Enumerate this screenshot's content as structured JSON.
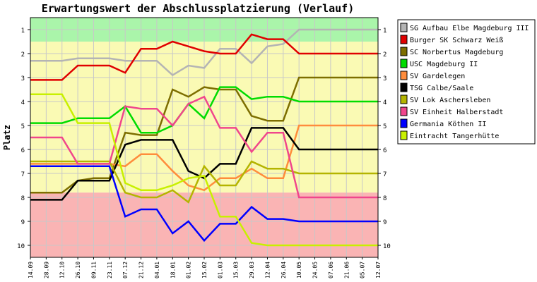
{
  "chart_data": {
    "type": "line",
    "title": "Erwartungswert der Abschlussplatzierung (Verlauf)",
    "xlabel": "",
    "ylabel": "Platz",
    "ylim": [
      0.5,
      10.5
    ],
    "y_inverted": true,
    "y_ticks": [
      "1",
      "2",
      "3",
      "4",
      "5",
      "6",
      "7",
      "8",
      "9",
      "10"
    ],
    "x": [
      "14.09",
      "28.09",
      "12.10",
      "26.10",
      "09.11",
      "23.11",
      "07.12",
      "21.12",
      "04.01",
      "18.01",
      "01.02",
      "15.02",
      "01.03",
      "15.03",
      "29.03",
      "12.04",
      "26.04",
      "10.05",
      "24.05",
      "07.06",
      "21.06",
      "05.07",
      "12.07"
    ],
    "grid": true,
    "legend_position": "right",
    "background_bands": [
      {
        "from": 0.5,
        "to": 1.5,
        "color": "#aaf5aa"
      },
      {
        "from": 1.5,
        "to": 7.8,
        "color": "#fafab4"
      },
      {
        "from": 7.8,
        "to": 10.5,
        "color": "#fab4b4"
      }
    ],
    "series": [
      {
        "name": "SG Aufbau Elbe Magdeburg III",
        "color": "#b4b4b4",
        "values": [
          2.3,
          2.3,
          2.3,
          2.2,
          2.2,
          2.2,
          2.3,
          2.3,
          2.3,
          2.9,
          2.5,
          2.6,
          1.8,
          1.8,
          2.4,
          1.7,
          1.6,
          1.0,
          1.0,
          1.0,
          1.0,
          1.0,
          1.0
        ]
      },
      {
        "name": "Burger SK Schwarz Weiß",
        "color": "#e00000",
        "values": [
          3.1,
          3.1,
          3.1,
          2.5,
          2.5,
          2.5,
          2.8,
          1.8,
          1.8,
          1.5,
          1.7,
          1.9,
          2.0,
          2.0,
          1.2,
          1.4,
          1.4,
          2.0,
          2.0,
          2.0,
          2.0,
          2.0,
          2.0
        ]
      },
      {
        "name": "SC Norbertus Magdeburg",
        "color": "#7d6e00",
        "values": [
          7.8,
          7.8,
          7.8,
          7.3,
          7.2,
          7.2,
          5.3,
          5.4,
          5.4,
          3.5,
          3.8,
          3.4,
          3.5,
          3.5,
          4.6,
          4.8,
          4.8,
          3.0,
          3.0,
          3.0,
          3.0,
          3.0,
          3.0
        ]
      },
      {
        "name": "USC Magdeburg II",
        "color": "#00dc00",
        "values": [
          4.9,
          4.9,
          4.9,
          4.7,
          4.7,
          4.7,
          4.2,
          5.3,
          5.3,
          5.0,
          4.1,
          4.7,
          3.4,
          3.4,
          3.9,
          3.8,
          3.8,
          4.0,
          4.0,
          4.0,
          4.0,
          4.0,
          4.0
        ]
      },
      {
        "name": "SV Gardelegen",
        "color": "#ff8c3c",
        "values": [
          6.6,
          6.6,
          6.6,
          6.6,
          6.6,
          6.6,
          6.7,
          6.2,
          6.2,
          6.9,
          7.5,
          7.7,
          7.2,
          7.2,
          6.8,
          7.2,
          7.2,
          5.0,
          5.0,
          5.0,
          5.0,
          5.0,
          5.0
        ]
      },
      {
        "name": "TSG Calbe/Saale",
        "color": "#000000",
        "values": [
          8.1,
          8.1,
          8.1,
          7.3,
          7.3,
          7.3,
          5.8,
          5.6,
          5.6,
          5.6,
          6.9,
          7.2,
          6.6,
          6.6,
          5.1,
          5.1,
          5.1,
          6.0,
          6.0,
          6.0,
          6.0,
          6.0,
          6.0
        ]
      },
      {
        "name": "SV Lok Aschersleben",
        "color": "#b4b400",
        "values": [
          6.5,
          6.5,
          6.5,
          6.5,
          6.5,
          6.5,
          7.8,
          8.0,
          8.0,
          7.7,
          8.2,
          6.7,
          7.5,
          7.5,
          6.5,
          6.8,
          6.8,
          7.0,
          7.0,
          7.0,
          7.0,
          7.0,
          7.0
        ]
      },
      {
        "name": "SV Einheit Halberstadt",
        "color": "#f0468c",
        "values": [
          5.5,
          5.5,
          5.5,
          6.6,
          6.6,
          6.6,
          4.2,
          4.3,
          4.3,
          5.0,
          4.1,
          3.8,
          5.1,
          5.1,
          6.1,
          5.3,
          5.3,
          8.0,
          8.0,
          8.0,
          8.0,
          8.0,
          8.0
        ]
      },
      {
        "name": "Germania Köthen II",
        "color": "#0000ff",
        "values": [
          6.7,
          6.7,
          6.7,
          6.7,
          6.7,
          6.7,
          8.8,
          8.5,
          8.5,
          9.5,
          9.0,
          9.8,
          9.1,
          9.1,
          8.4,
          8.9,
          8.9,
          9.0,
          9.0,
          9.0,
          9.0,
          9.0,
          9.0
        ]
      },
      {
        "name": "Eintracht Tangerhütte",
        "color": "#c8f000",
        "values": [
          3.7,
          3.7,
          3.7,
          4.9,
          4.9,
          4.9,
          7.4,
          7.7,
          7.7,
          7.5,
          7.2,
          7.1,
          8.8,
          8.8,
          9.9,
          10.0,
          10.0,
          10.0,
          10.0,
          10.0,
          10.0,
          10.0,
          10.0
        ]
      }
    ]
  }
}
